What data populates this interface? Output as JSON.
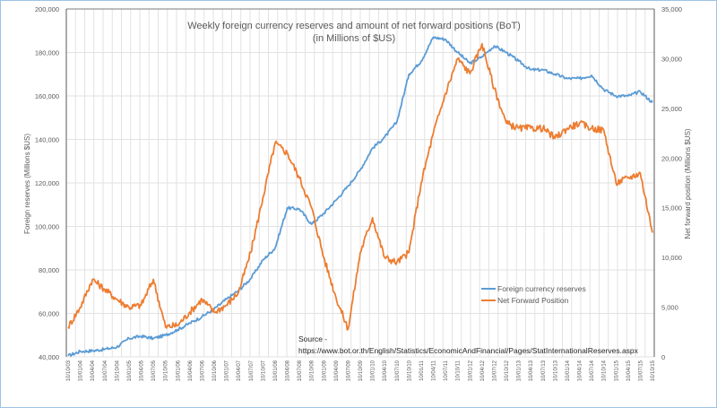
{
  "chart_data": {
    "type": "line",
    "title": "Weekly foreign currency reserves and amount of net forward positions (BoT)",
    "subtitle": "(in Millions of $US)",
    "ylabel": "Foreign reserves (Millions $US)",
    "y2label": "Net forward position (Millions $US)",
    "ylim": [
      40000,
      200000
    ],
    "y2lim": [
      0,
      35000
    ],
    "yticks": [
      "40,000",
      "60,000",
      "80,000",
      "100,000",
      "120,000",
      "140,000",
      "160,000",
      "180,000",
      "200,000"
    ],
    "y2ticks": [
      "0",
      "5,000",
      "10,000",
      "15,000",
      "20,000",
      "25,000",
      "30,000",
      "35,000"
    ],
    "grid": true,
    "legend_position": "center-right",
    "source_label": "Source -",
    "source_url": "https://www.bot.or.th/English/Statistics/EconomicAndFinancial/Pages/StatInternationalReserves.aspx",
    "categories": [
      "10/10/03",
      "10/01/04",
      "10/04/04",
      "10/07/04",
      "10/10/04",
      "10/01/05",
      "10/04/05",
      "10/07/05",
      "10/10/05",
      "10/01/06",
      "10/04/06",
      "10/07/06",
      "10/10/06",
      "10/01/07",
      "10/04/07",
      "10/07/07",
      "10/10/07",
      "10/01/08",
      "10/04/08",
      "10/07/08",
      "10/10/08",
      "10/01/09",
      "10/04/09",
      "10/07/09",
      "10/10/09",
      "10/01/10",
      "10/04/10",
      "10/07/10",
      "10/10/10",
      "10/01/11",
      "10/04/11",
      "10/07/11",
      "10/10/11",
      "10/01/12",
      "10/04/12",
      "10/07/12",
      "10/10/12",
      "10/01/13",
      "10/04/13",
      "10/07/13",
      "10/10/13",
      "10/01/14",
      "10/04/14",
      "10/07/14",
      "10/10/14",
      "10/01/15",
      "10/04/15",
      "10/07/15",
      "10/10/15"
    ],
    "series": [
      {
        "name": "Foreign currency reserves",
        "axis": "left",
        "color": "#5b9bd5",
        "values": [
          40500,
          42500,
          42800,
          43500,
          44500,
          48500,
          49500,
          48500,
          50000,
          52500,
          55500,
          58500,
          62000,
          66500,
          70500,
          76000,
          84500,
          90000,
          108500,
          108000,
          101000,
          106000,
          112000,
          118500,
          126000,
          136000,
          141000,
          148000,
          170000,
          176000,
          187000,
          186000,
          180000,
          175000,
          178000,
          183000,
          180000,
          176000,
          172000,
          172000,
          170000,
          168000,
          168000,
          169500,
          163000,
          160000,
          160000,
          162000,
          157000
        ]
      },
      {
        "name": "Net Forward Position",
        "axis": "right",
        "color": "#ed7d31",
        "values": [
          3000,
          5000,
          7800,
          6800,
          5800,
          5000,
          5200,
          7800,
          3000,
          3200,
          4500,
          5800,
          4500,
          5200,
          6500,
          10500,
          16000,
          21500,
          20500,
          18000,
          15000,
          10000,
          6000,
          2800,
          10500,
          14000,
          10000,
          9500,
          10500,
          17500,
          22500,
          26500,
          30000,
          28500,
          31500,
          27000,
          23500,
          23000,
          23000,
          23000,
          22000,
          23000,
          23500,
          23000,
          22800,
          17500,
          18000,
          18500,
          12500
        ]
      }
    ]
  }
}
